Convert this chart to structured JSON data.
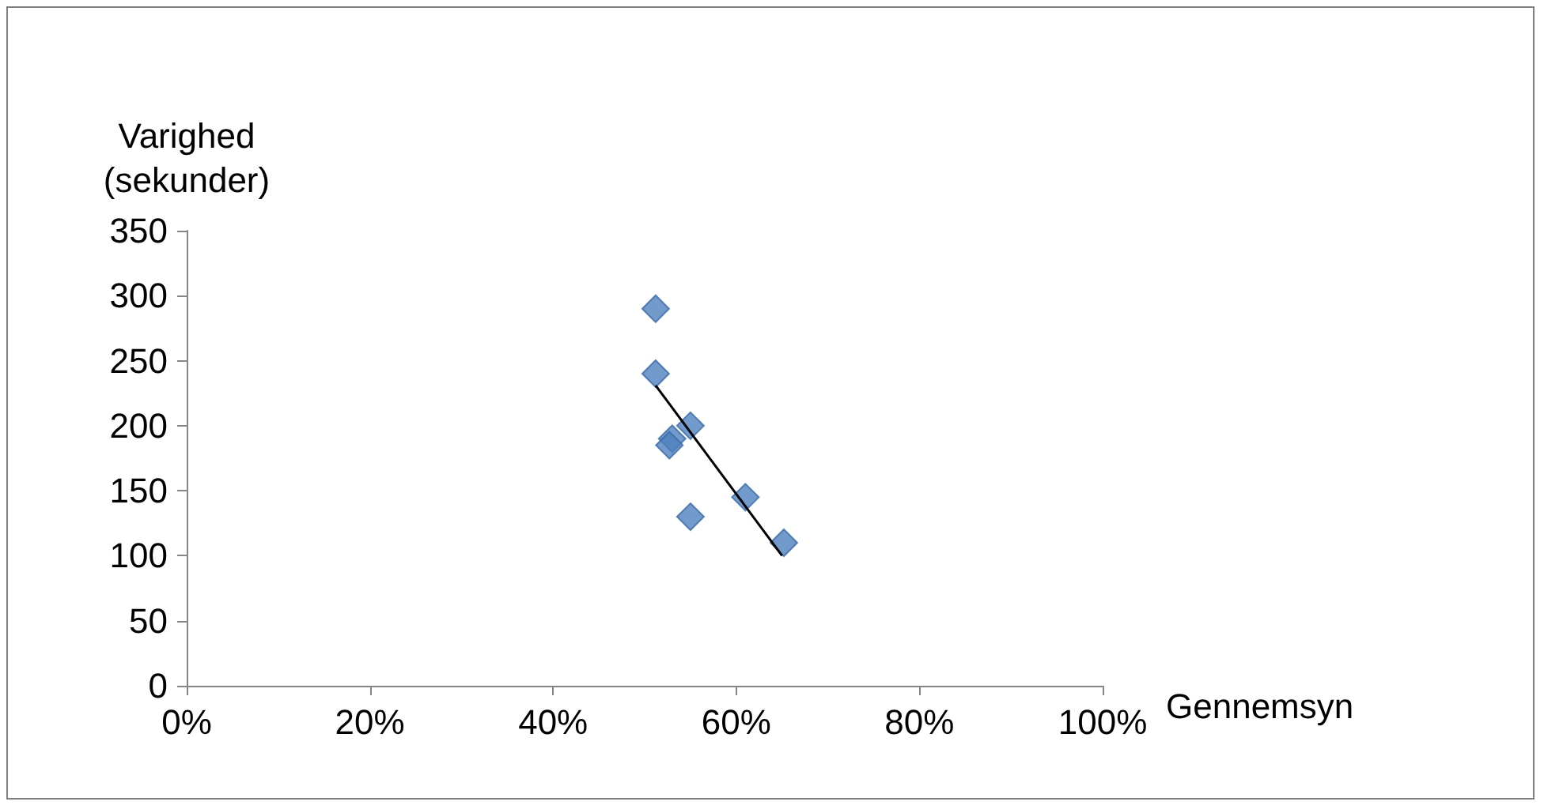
{
  "chart_data": {
    "type": "scatter",
    "xlabel": "Gennemsyn",
    "ylabel": "Varighed\n(sekunder)",
    "xlim": [
      0,
      100
    ],
    "xticks": [
      {
        "value": 0,
        "label": "0%"
      },
      {
        "value": 20,
        "label": "20%"
      },
      {
        "value": 40,
        "label": "40%"
      },
      {
        "value": 60,
        "label": "60%"
      },
      {
        "value": 80,
        "label": "80%"
      },
      {
        "value": 100,
        "label": "100%"
      }
    ],
    "ylim": [
      0,
      350
    ],
    "yticks": [
      0,
      50,
      100,
      150,
      200,
      250,
      300,
      350
    ],
    "grid": false,
    "series": [
      {
        "color": "#4f81bd",
        "marker": "diamond",
        "x": [
          51.2,
          51.2,
          55,
          53,
          52.7,
          61,
          55,
          65.2
        ],
        "values": [
          290,
          240,
          200,
          190,
          185,
          145,
          130,
          110
        ]
      },
      {
        "type": "line",
        "color": "#000000",
        "marker": "none",
        "x": [
          51.2,
          65
        ],
        "values": [
          231,
          100
        ]
      }
    ]
  }
}
